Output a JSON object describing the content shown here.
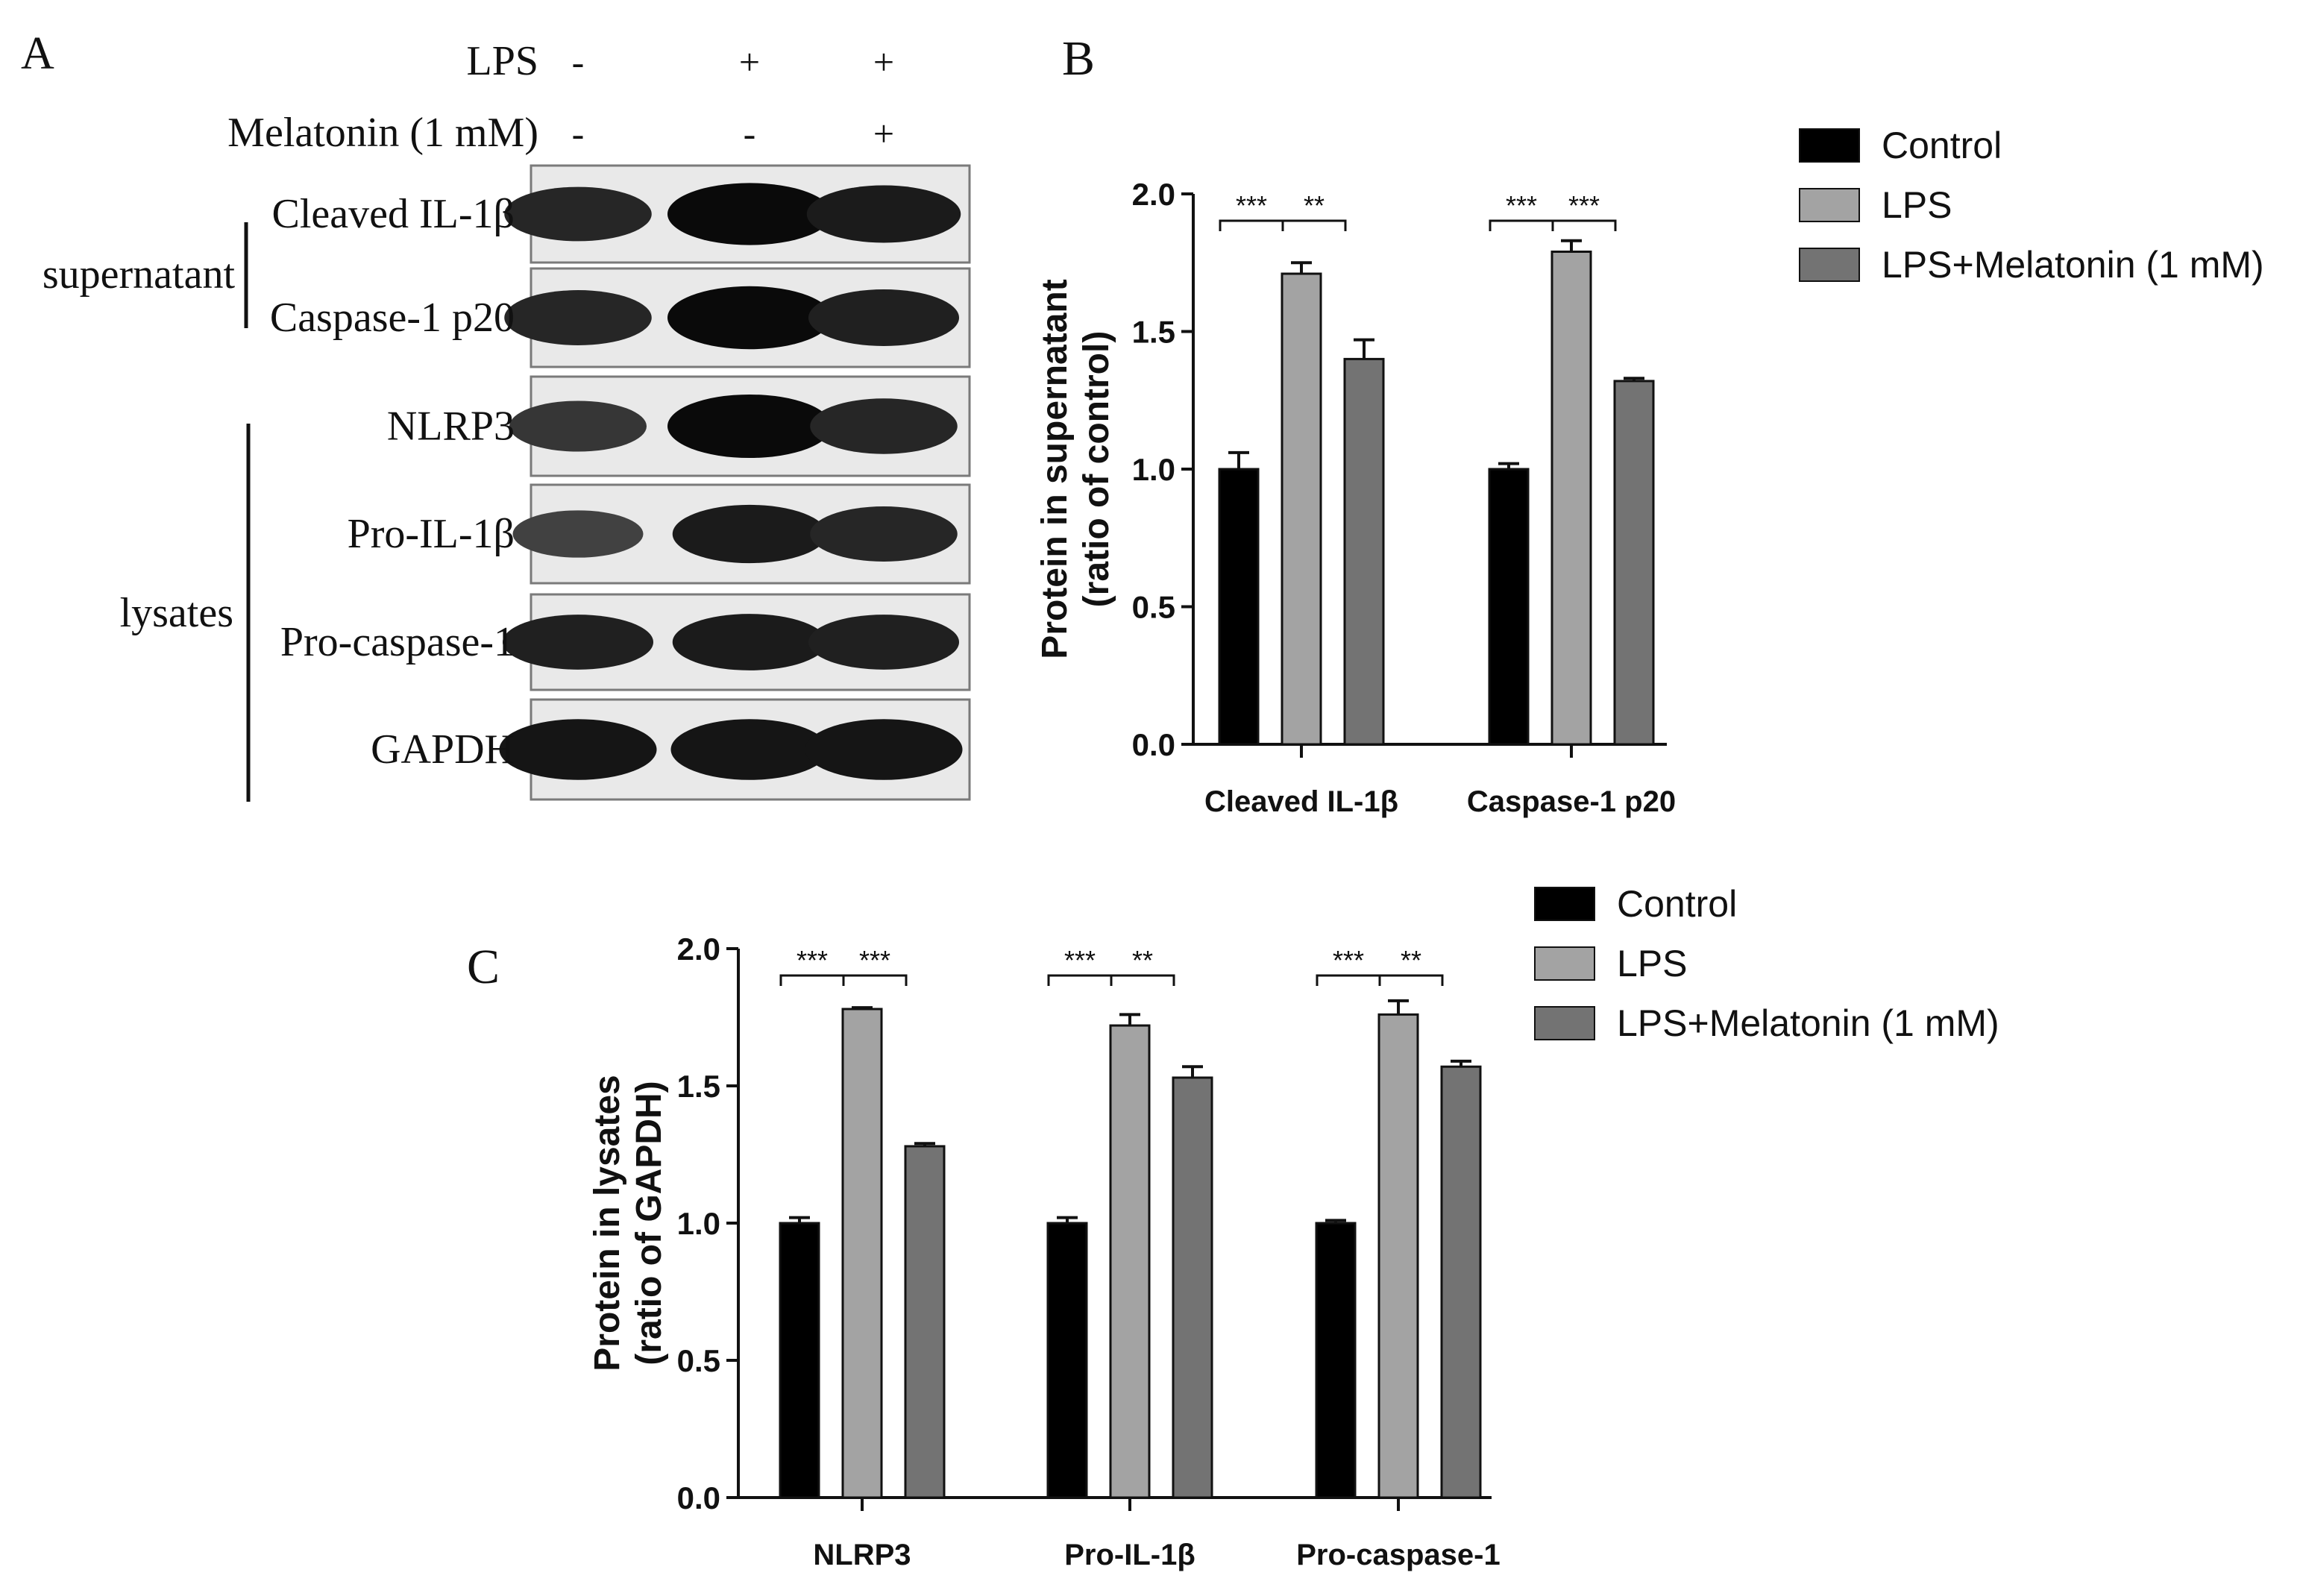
{
  "panel_a": {
    "label": "A",
    "conditions": [
      {
        "name": "LPS",
        "marks": [
          "-",
          "+",
          "+"
        ]
      },
      {
        "name": "Melatonin (1 mM)",
        "marks": [
          "-",
          "-",
          "+"
        ]
      }
    ],
    "groups": [
      {
        "name": "supernatant",
        "bands": [
          "Cleaved IL-1β",
          "Caspase-1 p20"
        ]
      },
      {
        "name": "lysates",
        "bands": [
          "NLRP3",
          "Pro-IL-1β",
          "Pro-caspase-1",
          "GAPDH"
        ]
      }
    ],
    "band_intensity": [
      [
        0.75,
        1.0,
        0.85
      ],
      [
        0.75,
        1.0,
        0.8
      ],
      [
        0.6,
        1.0,
        0.75
      ],
      [
        0.5,
        0.85,
        0.75
      ],
      [
        0.8,
        0.85,
        0.8
      ],
      [
        0.9,
        0.9,
        0.9
      ]
    ]
  },
  "chart_data": [
    {
      "panel_label": "B",
      "type": "bar",
      "title": "",
      "xlabel": "",
      "ylabel": [
        "Protein in supernatant",
        "(ratio of control)"
      ],
      "ylim": [
        0,
        2.0
      ],
      "yticks": [
        "0.0",
        "0.5",
        "1.0",
        "1.5",
        "2.0"
      ],
      "categories": [
        "Cleaved IL-1β",
        "Caspase-1 p20"
      ],
      "series": [
        {
          "name": "Control",
          "values": [
            1.0,
            1.0
          ],
          "errors": [
            0.06,
            0.02
          ],
          "color": "#000000"
        },
        {
          "name": "LPS",
          "values": [
            1.71,
            1.79
          ],
          "errors": [
            0.04,
            0.04
          ],
          "color": "#a3a3a3"
        },
        {
          "name": "LPS+Melatonin (1 mM)",
          "values": [
            1.4,
            1.32
          ],
          "errors": [
            0.07,
            0.01
          ],
          "color": "#737373"
        }
      ],
      "significance": [
        [
          {
            "pair": [
              0,
              1
            ],
            "label": "***"
          },
          {
            "pair": [
              1,
              2
            ],
            "label": "**"
          }
        ],
        [
          {
            "pair": [
              0,
              1
            ],
            "label": "***"
          },
          {
            "pair": [
              1,
              2
            ],
            "label": "***"
          }
        ]
      ],
      "legend_position": "top-right",
      "grid": false
    },
    {
      "panel_label": "C",
      "type": "bar",
      "title": "",
      "xlabel": "",
      "ylabel": [
        "Protein in lysates",
        "(ratio of GAPDH)"
      ],
      "ylim": [
        0,
        2.0
      ],
      "yticks": [
        "0.0",
        "0.5",
        "1.0",
        "1.5",
        "2.0"
      ],
      "categories": [
        "NLRP3",
        "Pro-IL-1β",
        "Pro-caspase-1"
      ],
      "series": [
        {
          "name": "Control",
          "values": [
            1.0,
            1.0,
            1.0
          ],
          "errors": [
            0.02,
            0.02,
            0.01
          ],
          "color": "#000000"
        },
        {
          "name": "LPS",
          "values": [
            1.78,
            1.72,
            1.76
          ],
          "errors": [
            0.005,
            0.04,
            0.05
          ],
          "color": "#a3a3a3"
        },
        {
          "name": "LPS+Melatonin (1 mM)",
          "values": [
            1.28,
            1.53,
            1.57
          ],
          "errors": [
            0.01,
            0.04,
            0.02
          ],
          "color": "#737373"
        }
      ],
      "significance": [
        [
          {
            "pair": [
              0,
              1
            ],
            "label": "***"
          },
          {
            "pair": [
              1,
              2
            ],
            "label": "***"
          }
        ],
        [
          {
            "pair": [
              0,
              1
            ],
            "label": "***"
          },
          {
            "pair": [
              1,
              2
            ],
            "label": "**"
          }
        ],
        [
          {
            "pair": [
              0,
              1
            ],
            "label": "***"
          },
          {
            "pair": [
              1,
              2
            ],
            "label": "**"
          }
        ]
      ],
      "legend_position": "top-right",
      "grid": false
    }
  ]
}
